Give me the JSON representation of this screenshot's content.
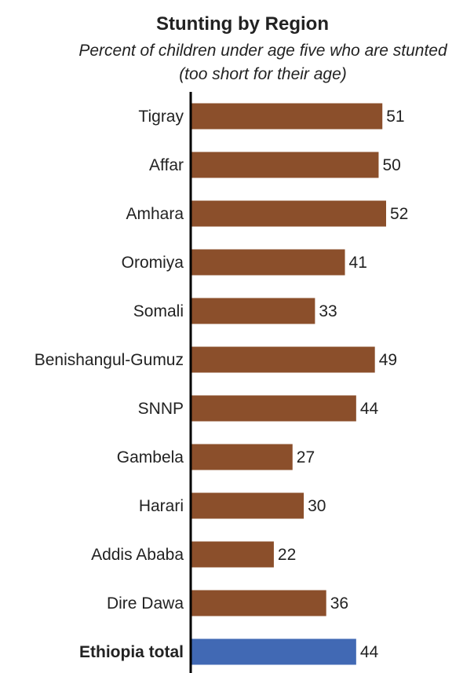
{
  "chart_data": {
    "type": "bar",
    "orientation": "horizontal",
    "title": "Stunting by Region",
    "subtitle_lines": [
      "Percent of children under age five who are stunted",
      "(too short for their age)"
    ],
    "categories": [
      "Tigray",
      "Affar",
      "Amhara",
      "Oromiya",
      "Somali",
      "Benishangul-Gumuz",
      "SNNP",
      "Gambela",
      "Harari",
      "Addis Ababa",
      "Dire Dawa",
      "Ethiopia total"
    ],
    "values": [
      51,
      50,
      52,
      41,
      33,
      49,
      44,
      27,
      30,
      22,
      36,
      44
    ],
    "highlight_index": 11,
    "xlim": [
      0,
      52
    ],
    "grid": false,
    "legend": "none",
    "colors": {
      "bar": "#8b4f2b",
      "highlight": "#4169b4",
      "axis": "#000000",
      "text": "#222222"
    }
  }
}
